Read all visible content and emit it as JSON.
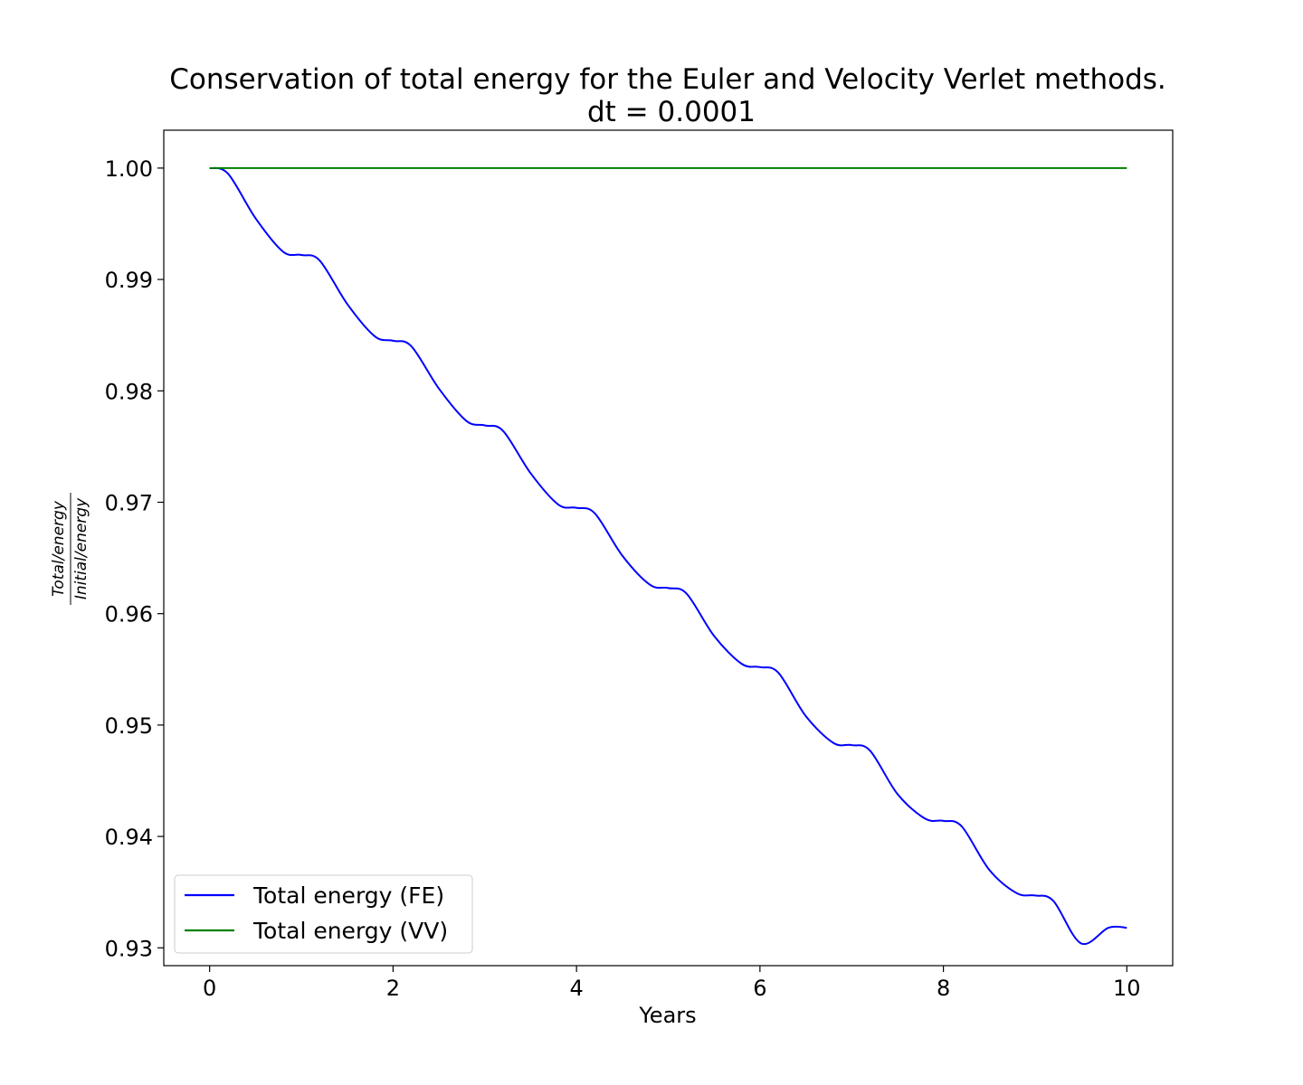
{
  "chart_data": {
    "type": "line",
    "title": "Conservation of total energy for the Euler and Velocity Verlet methods.",
    "subtitle": "dt = 0.0001",
    "xlabel": "Years",
    "ylabel_numerator": "Total/energy",
    "ylabel_denominator": "Initial/energy",
    "xlim": [
      -0.5,
      10.5
    ],
    "ylim": [
      0.9284,
      1.0034
    ],
    "xticks": [
      0,
      2,
      4,
      6,
      8,
      10
    ],
    "xtick_labels": [
      "0",
      "2",
      "4",
      "6",
      "8",
      "10"
    ],
    "yticks": [
      0.93,
      0.94,
      0.95,
      0.96,
      0.97,
      0.98,
      0.99,
      1.0
    ],
    "ytick_labels": [
      "0.93",
      "0.94",
      "0.95",
      "0.96",
      "0.97",
      "0.98",
      "0.99",
      "1.00"
    ],
    "grid": false,
    "legend_position": "lower-left",
    "series": [
      {
        "name": "Total energy (FE)",
        "color": "#0000ff",
        "x": [
          0,
          0.2,
          0.5,
          0.8,
          1.0,
          1.2,
          1.5,
          1.8,
          2.0,
          2.2,
          2.5,
          2.8,
          3.0,
          3.2,
          3.5,
          3.8,
          4.0,
          4.2,
          4.5,
          4.8,
          5.0,
          5.2,
          5.5,
          5.8,
          6.0,
          6.2,
          6.5,
          6.8,
          7.0,
          7.2,
          7.5,
          7.8,
          8.0,
          8.2,
          8.5,
          8.8,
          9.0,
          9.2,
          9.5,
          9.8,
          10.0
        ],
        "y": [
          1.0,
          0.9995,
          0.9955,
          0.9925,
          0.9922,
          0.9917,
          0.9878,
          0.9849,
          0.9845,
          0.984,
          0.9802,
          0.9773,
          0.9769,
          0.9764,
          0.9726,
          0.9698,
          0.9695,
          0.969,
          0.9652,
          0.9626,
          0.9623,
          0.9618,
          0.958,
          0.9555,
          0.9552,
          0.9547,
          0.9508,
          0.9484,
          0.9482,
          0.9477,
          0.9438,
          0.9416,
          0.9414,
          0.9409,
          0.937,
          0.9349,
          0.9347,
          0.9342,
          0.9304,
          0.9318,
          0.9318
        ]
      },
      {
        "name": "Total energy (VV)",
        "color": "#008000",
        "x": [
          0,
          10
        ],
        "y": [
          1.0,
          1.0
        ]
      }
    ]
  }
}
